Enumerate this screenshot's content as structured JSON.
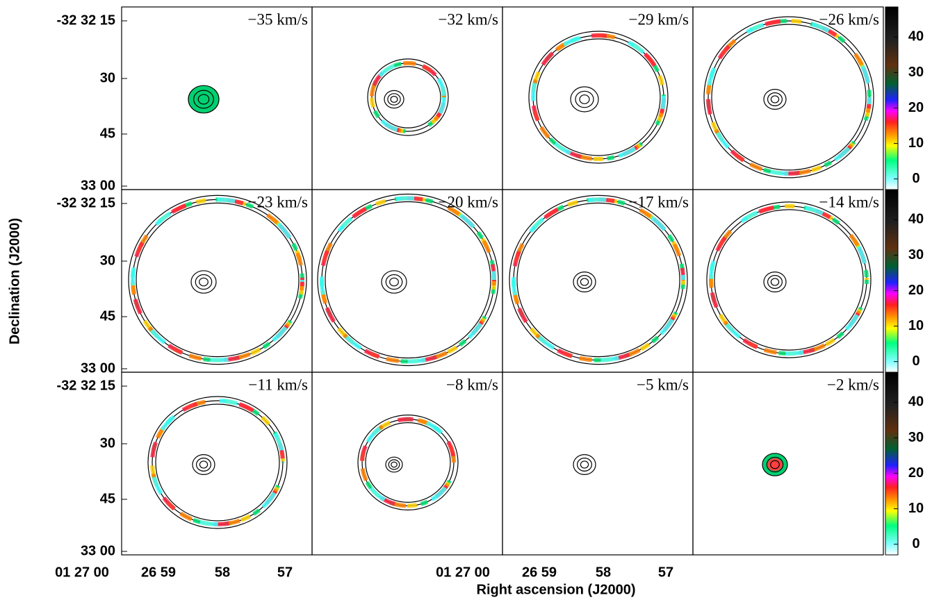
{
  "figure": {
    "x_axis_label": "Right ascension (J2000)",
    "y_axis_label": "Declination (J2000)",
    "panels": [
      "−35 km/s",
      "−32 km/s",
      "−29 km/s",
      "−26 km/s",
      "−23 km/s",
      "−20 km/s",
      "−17 km/s",
      "−14 km/s",
      "−11 km/s",
      "−8 km/s",
      "−5 km/s",
      "−2 km/s"
    ],
    "y_tick_labels": [
      "-32 32 15",
      "30",
      "45",
      "33 00"
    ],
    "x_tick_labels": [
      "01 27 00",
      "26 59",
      "58",
      "57"
    ],
    "colorbar": {
      "range": [
        -3,
        48.5
      ],
      "ticks": [
        0,
        10,
        20,
        30,
        40
      ]
    }
  }
}
